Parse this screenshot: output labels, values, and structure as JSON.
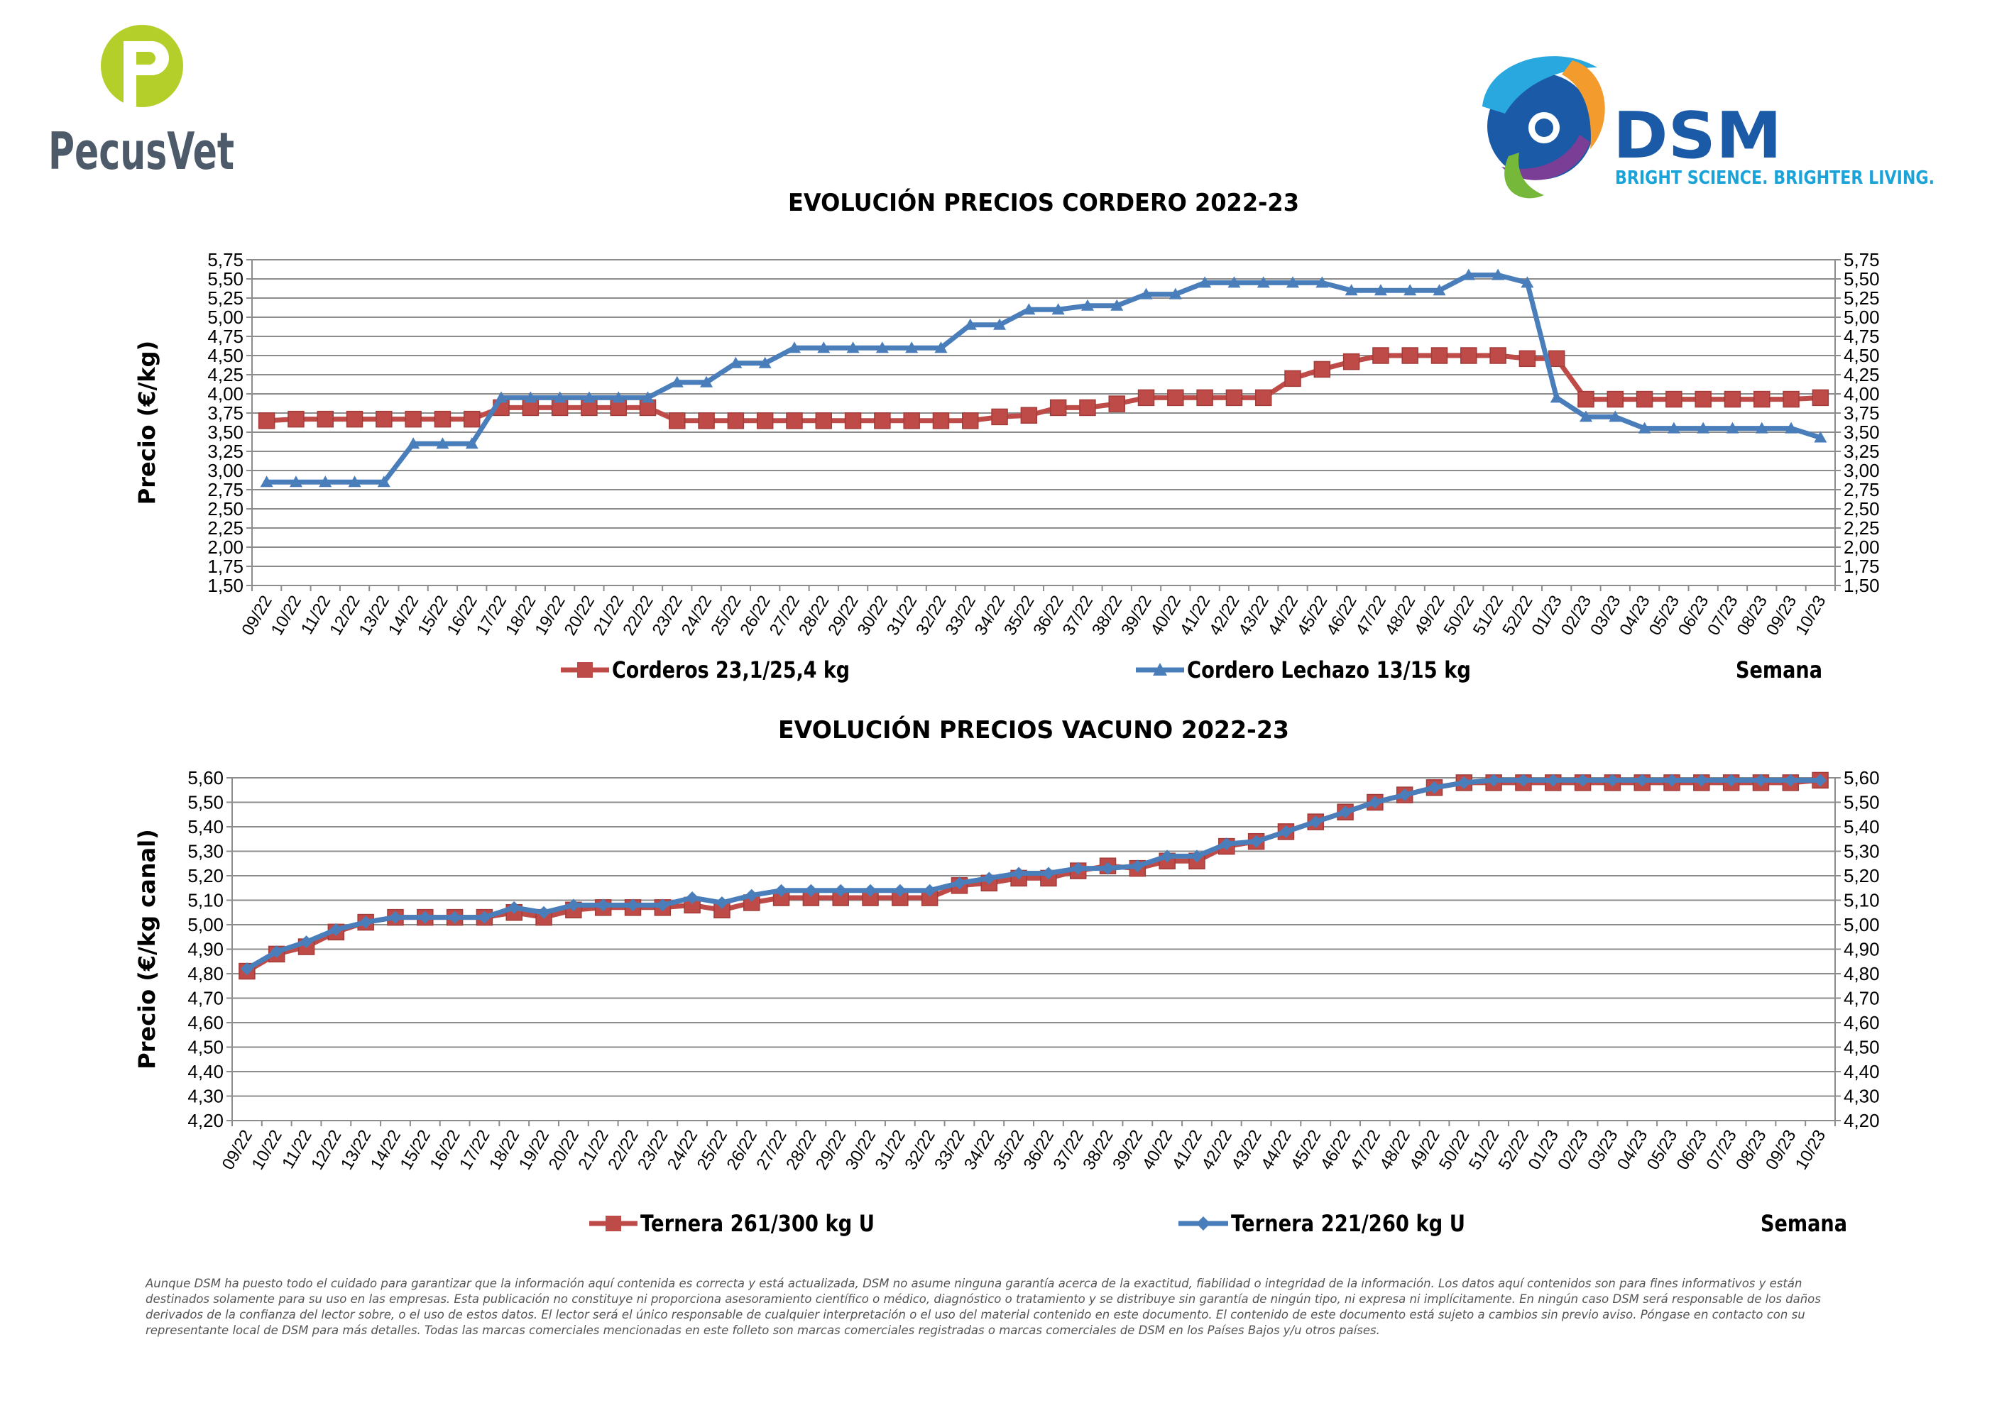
{
  "header": {
    "left_logo_text": "PecusVet",
    "right_logo_text": "DSM",
    "right_logo_tagline": "BRIGHT SCIENCE. BRIGHTER LIVING."
  },
  "colors": {
    "series_red": "#be4b48",
    "series_blue": "#4a7ebb",
    "grid": "#8c8c8c",
    "pecusvet_green": "#b5cf2a",
    "pecusvet_text": "#4d5a6a",
    "dsm_blue": "#1b5aa6",
    "dsm_tagline": "#1aa3d8"
  },
  "weeks": [
    "09/22",
    "10/22",
    "11/22",
    "12/22",
    "13/22",
    "14/22",
    "15/22",
    "16/22",
    "17/22",
    "18/22",
    "19/22",
    "20/22",
    "21/22",
    "22/22",
    "23/22",
    "24/22",
    "25/22",
    "26/22",
    "27/22",
    "28/22",
    "29/22",
    "30/22",
    "31/22",
    "32/22",
    "33/22",
    "34/22",
    "35/22",
    "36/22",
    "37/22",
    "38/22",
    "39/22",
    "40/22",
    "41/22",
    "42/22",
    "43/22",
    "44/22",
    "45/22",
    "46/22",
    "47/22",
    "48/22",
    "49/22",
    "50/22",
    "51/22",
    "52/22",
    "01/23",
    "02/23",
    "03/23",
    "04/23",
    "05/23",
    "06/23",
    "07/23",
    "08/23",
    "09/23",
    "10/23"
  ],
  "chart_data": [
    {
      "type": "line",
      "title": "EVOLUCIÓN PRECIOS CORDERO 2022-23",
      "ylabel": "Precio (€/kg)",
      "xlabel": "Semana",
      "ylim": [
        1.5,
        5.75
      ],
      "ytick_step": 0.25,
      "yticks_both_sides": true,
      "grid": true,
      "legend_position": "bottom",
      "series": [
        {
          "name": "Corderos 23,1/25,4 kg",
          "color": "#be4b48",
          "marker": "square",
          "values": [
            3.65,
            3.67,
            3.67,
            3.67,
            3.67,
            3.67,
            3.67,
            3.67,
            3.82,
            3.82,
            3.82,
            3.82,
            3.82,
            3.82,
            3.65,
            3.65,
            3.65,
            3.65,
            3.65,
            3.65,
            3.65,
            3.65,
            3.65,
            3.65,
            3.65,
            3.7,
            3.72,
            3.82,
            3.82,
            3.87,
            3.95,
            3.95,
            3.95,
            3.95,
            3.95,
            4.2,
            4.32,
            4.42,
            4.5,
            4.5,
            4.5,
            4.5,
            4.5,
            4.46,
            4.46,
            3.93,
            3.93,
            3.93,
            3.93,
            3.93,
            3.93,
            3.93,
            3.93,
            3.95
          ]
        },
        {
          "name": "Cordero Lechazo 13/15 kg",
          "color": "#4a7ebb",
          "marker": "triangle",
          "values": [
            2.85,
            2.85,
            2.85,
            2.85,
            2.85,
            3.35,
            3.35,
            3.35,
            3.95,
            3.95,
            3.95,
            3.95,
            3.95,
            3.95,
            4.15,
            4.15,
            4.4,
            4.4,
            4.6,
            4.6,
            4.6,
            4.6,
            4.6,
            4.6,
            4.9,
            4.9,
            5.1,
            5.1,
            5.15,
            5.15,
            5.3,
            5.3,
            5.45,
            5.45,
            5.45,
            5.45,
            5.45,
            5.35,
            5.35,
            5.35,
            5.35,
            5.55,
            5.55,
            5.45,
            3.95,
            3.7,
            3.7,
            3.55,
            3.55,
            3.55,
            3.55,
            3.55,
            3.55,
            3.43
          ]
        }
      ]
    },
    {
      "type": "line",
      "title": "EVOLUCIÓN PRECIOS VACUNO 2022-23",
      "ylabel": "Precio (€/kg canal)",
      "xlabel": "Semana",
      "ylim": [
        4.2,
        5.6
      ],
      "ytick_step": 0.1,
      "yticks_both_sides": true,
      "grid": true,
      "legend_position": "bottom",
      "series": [
        {
          "name": "Ternera 261/300 kg U",
          "color": "#be4b48",
          "marker": "square",
          "values": [
            4.81,
            4.88,
            4.91,
            4.97,
            5.01,
            5.03,
            5.03,
            5.03,
            5.03,
            5.05,
            5.03,
            5.06,
            5.07,
            5.07,
            5.07,
            5.08,
            5.06,
            5.09,
            5.11,
            5.11,
            5.11,
            5.11,
            5.11,
            5.11,
            5.16,
            5.17,
            5.19,
            5.19,
            5.22,
            5.24,
            5.23,
            5.26,
            5.26,
            5.32,
            5.34,
            5.38,
            5.42,
            5.46,
            5.5,
            5.53,
            5.56,
            5.58,
            5.58,
            5.58,
            5.58,
            5.58,
            5.58,
            5.58,
            5.58,
            5.58,
            5.58,
            5.58,
            5.58,
            5.59
          ]
        },
        {
          "name": "Ternera 221/260 kg U",
          "color": "#4a7ebb",
          "marker": "diamond",
          "values": [
            4.82,
            4.89,
            4.93,
            4.98,
            5.01,
            5.03,
            5.03,
            5.03,
            5.03,
            5.07,
            5.05,
            5.08,
            5.08,
            5.08,
            5.08,
            5.11,
            5.09,
            5.12,
            5.14,
            5.14,
            5.14,
            5.14,
            5.14,
            5.14,
            5.17,
            5.19,
            5.21,
            5.21,
            5.23,
            5.23,
            5.24,
            5.28,
            5.28,
            5.33,
            5.34,
            5.38,
            5.42,
            5.46,
            5.5,
            5.53,
            5.56,
            5.58,
            5.59,
            5.59,
            5.59,
            5.59,
            5.59,
            5.59,
            5.59,
            5.59,
            5.59,
            5.59,
            5.59,
            5.59
          ]
        }
      ]
    }
  ],
  "footer": {
    "disclaimer": "Aunque DSM ha puesto todo el cuidado para garantizar que la información aquí contenida es correcta y está actualizada, DSM no asume ninguna garantía acerca de la exactitud, fiabilidad o integridad de la información. Los datos aquí contenidos son para fines informativos y están destinados solamente para su uso en las empresas. Esta publicación no constituye ni proporciona asesoramiento científico o médico, diagnóstico o tratamiento y se distribuye sin garantía de ningún tipo, ni expresa ni implícitamente. En ningún caso DSM será responsable de los daños derivados de la confianza del lector sobre, o el uso de estos datos. El lector será el único responsable de cualquier interpretación o el uso del material contenido en este documento. El contenido de este documento está sujeto a cambios sin previo aviso. Póngase en contacto con su representante local de DSM para más detalles. Todas las marcas comerciales mencionadas en este folleto son marcas comerciales registradas o marcas comerciales de DSM en los Países Bajos y/u otros países."
  }
}
